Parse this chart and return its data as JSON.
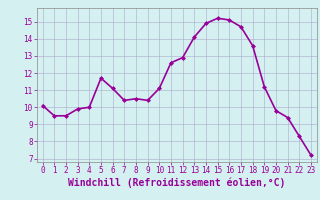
{
  "x": [
    0,
    1,
    2,
    3,
    4,
    5,
    6,
    7,
    8,
    9,
    10,
    11,
    12,
    13,
    14,
    15,
    16,
    17,
    18,
    19,
    20,
    21,
    22,
    23
  ],
  "y": [
    10.1,
    9.5,
    9.5,
    9.9,
    10.0,
    11.7,
    11.1,
    10.4,
    10.5,
    10.4,
    11.1,
    12.6,
    12.9,
    14.1,
    14.9,
    15.2,
    15.1,
    14.7,
    13.6,
    11.2,
    9.8,
    9.4,
    8.3,
    7.2
  ],
  "line_color": "#990099",
  "marker": "D",
  "marker_size": 2,
  "bg_color": "#d5f0f0",
  "grid_color": "#aaaacc",
  "xlabel": "Windchill (Refroidissement éolien,°C)",
  "xlabel_color": "#990099",
  "ylim": [
    6.8,
    15.8
  ],
  "xlim": [
    -0.5,
    23.5
  ],
  "yticks": [
    7,
    8,
    9,
    10,
    11,
    12,
    13,
    14,
    15
  ],
  "xticks": [
    0,
    1,
    2,
    3,
    4,
    5,
    6,
    7,
    8,
    9,
    10,
    11,
    12,
    13,
    14,
    15,
    16,
    17,
    18,
    19,
    20,
    21,
    22,
    23
  ],
  "tick_color": "#990099",
  "tick_fontsize": 5.5,
  "xlabel_fontsize": 7.0,
  "line_width": 1.2
}
